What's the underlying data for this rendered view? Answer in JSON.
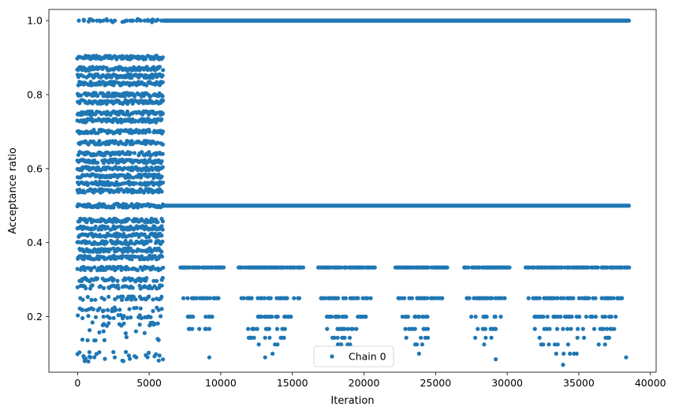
{
  "chart_data": {
    "type": "scatter",
    "title": "",
    "xlabel": "Iteration",
    "ylabel": "Acceptance ratio",
    "xlim": [
      -2000,
      40400
    ],
    "ylim": [
      0.05,
      1.03
    ],
    "xticks": [
      0,
      5000,
      10000,
      15000,
      20000,
      25000,
      30000,
      35000,
      40000
    ],
    "yticks": [
      0.2,
      0.4,
      0.6,
      0.8,
      1.0
    ],
    "grid": false,
    "legend": {
      "position": "bottom-center",
      "entries": [
        "Chain 0"
      ]
    },
    "colors": {
      "series": "#1f77b4"
    },
    "series": [
      {
        "name": "Chain 0",
        "segments": [
          {
            "x_range": [
              0,
              6000
            ],
            "levels": [
              1.0,
              0.9,
              0.87,
              0.85,
              0.83,
              0.8,
              0.78,
              0.75,
              0.73,
              0.7,
              0.67,
              0.64,
              0.62,
              0.6,
              0.58,
              0.56,
              0.54,
              0.5,
              0.46,
              0.44,
              0.42,
              0.4,
              0.38,
              0.36,
              0.33,
              0.3,
              0.28,
              0.25,
              0.22,
              0.2,
              0.18,
              0.16,
              0.14,
              0.1,
              0.09,
              0.08
            ]
          },
          {
            "x_range": [
              6000,
              38500
            ],
            "dense_levels": [
              1.0,
              0.5
            ],
            "intermittent_levels": [
              0.333,
              0.25,
              0.2,
              0.167,
              0.143,
              0.125,
              0.1
            ]
          }
        ],
        "outliers": [
          [
            500,
            0.08
          ],
          [
            900,
            0.09
          ],
          [
            2600,
            0.09
          ],
          [
            3200,
            0.08
          ],
          [
            4100,
            0.09
          ],
          [
            9200,
            0.09
          ],
          [
            13100,
            0.09
          ],
          [
            29200,
            0.085
          ],
          [
            33900,
            0.07
          ],
          [
            38300,
            0.09
          ]
        ],
        "marker": "circle"
      }
    ]
  }
}
